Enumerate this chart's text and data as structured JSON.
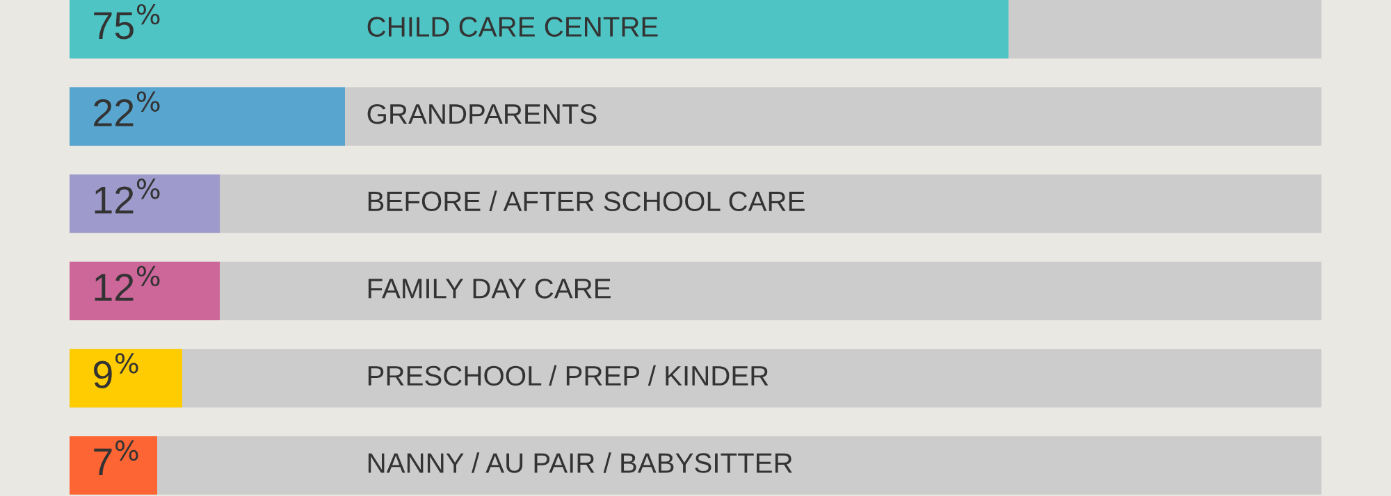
{
  "chart_data": {
    "type": "bar",
    "orientation": "horizontal",
    "categories": [
      "CHILD CARE CENTRE",
      "GRANDPARENTS",
      "BEFORE / AFTER SCHOOL CARE",
      "FAMILY DAY CARE",
      "PRESCHOOL / PREP / KINDER",
      "NANNY / AU PAIR / BABYSITTER"
    ],
    "values": [
      75,
      22,
      12,
      12,
      9,
      7
    ],
    "colors": [
      "#4fc4c4",
      "#58a6cf",
      "#9e9acb",
      "#cd6699",
      "#fecc00",
      "#fd6634"
    ],
    "value_labels": [
      "75$^{%}$",
      "22$^{%}$",
      "12$^{%}$",
      "12$^{%}$",
      "9$^{%}$",
      "7$^{%}$"
    ],
    "xlim": [
      0,
      100
    ],
    "tick_labels": false
  }
}
